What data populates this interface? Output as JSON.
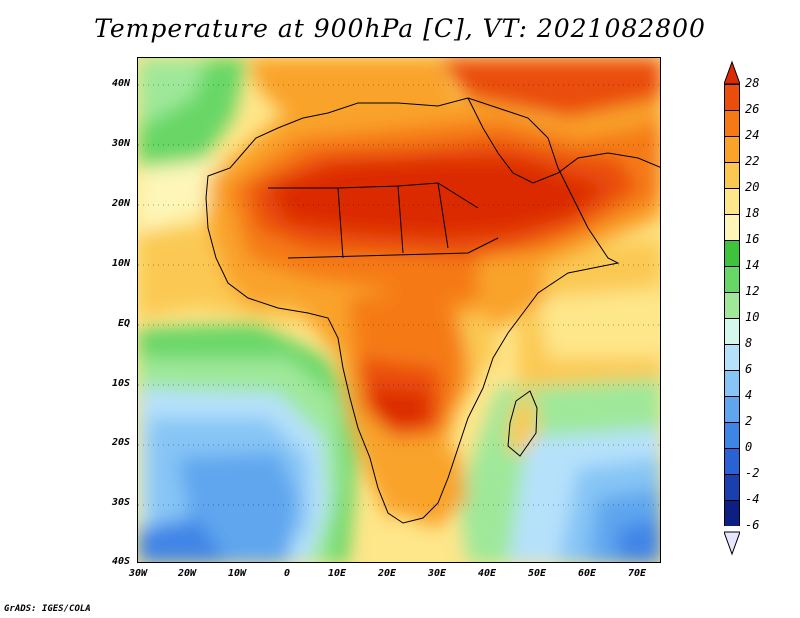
{
  "title": "Temperature at 900hPa [C], VT: 2021082800",
  "y_axis_labels": [
    "40N",
    "30N",
    "20N",
    "10N",
    "EQ",
    "10S",
    "20S",
    "30S",
    "40S"
  ],
  "x_axis_labels": [
    "30W",
    "20W",
    "10W",
    "0",
    "10E",
    "20E",
    "30E",
    "40E",
    "50E",
    "60E",
    "70E"
  ],
  "colorbar": {
    "labels": [
      "28",
      "26",
      "24",
      "22",
      "20",
      "18",
      "16",
      "14",
      "12",
      "10",
      "8",
      "6",
      "4",
      "2",
      "0",
      "-2",
      "-4",
      "-6"
    ],
    "colors": [
      "#dc2a05",
      "#ea4d0c",
      "#f57a16",
      "#f9a32a",
      "#fbc952",
      "#fee68a",
      "#fdf6b8",
      "#3ec43c",
      "#67d766",
      "#9fe89a",
      "#d6f7ee",
      "#b6e1fb",
      "#86c5f5",
      "#5fa6ef",
      "#3f85e6",
      "#2a62d4",
      "#1a3fae",
      "#0b1f84",
      "#e6e6ff"
    ]
  },
  "footer": "GrADS: IGES/COLA"
}
